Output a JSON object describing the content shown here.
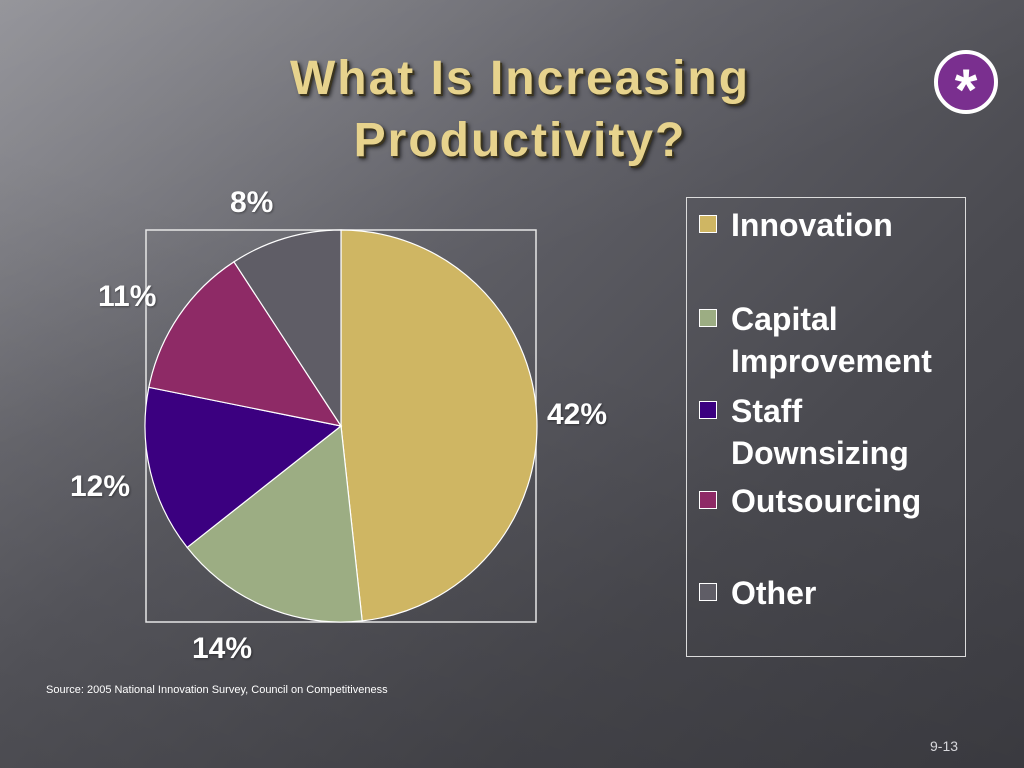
{
  "slide": {
    "title_line1": "What Is Increasing",
    "title_line2": "Productivity?",
    "badge_symbol": "*",
    "badge_color": "#7a2f8f",
    "source": "Source: 2005 National Innovation Survey, Council on Competitiveness",
    "slide_number": "9-13"
  },
  "chart_data": {
    "type": "pie",
    "title": "",
    "categories": [
      "Innovation",
      "Capital Improvement",
      "Staff Downsizing",
      "Outsourcing",
      "Other"
    ],
    "values": [
      42,
      14,
      12,
      11,
      8
    ],
    "labels": [
      "42%",
      "14%",
      "12%",
      "11%",
      "8%"
    ],
    "colors": [
      "#cfb663",
      "#9cad83",
      "#3b0080",
      "#8e2a66",
      "#5f5d66"
    ],
    "start_angle_deg": 0,
    "direction": "clockwise",
    "legend_position": "right",
    "legend": [
      {
        "label": "Innovation",
        "color": "#cfb663"
      },
      {
        "label": "Capital Improvement",
        "color": "#9cad83"
      },
      {
        "label": "Staff Downsizing",
        "color": "#3b0080"
      },
      {
        "label": "Outsourcing",
        "color": "#8e2a66"
      },
      {
        "label": "Other",
        "color": "#5f5d66"
      }
    ]
  }
}
